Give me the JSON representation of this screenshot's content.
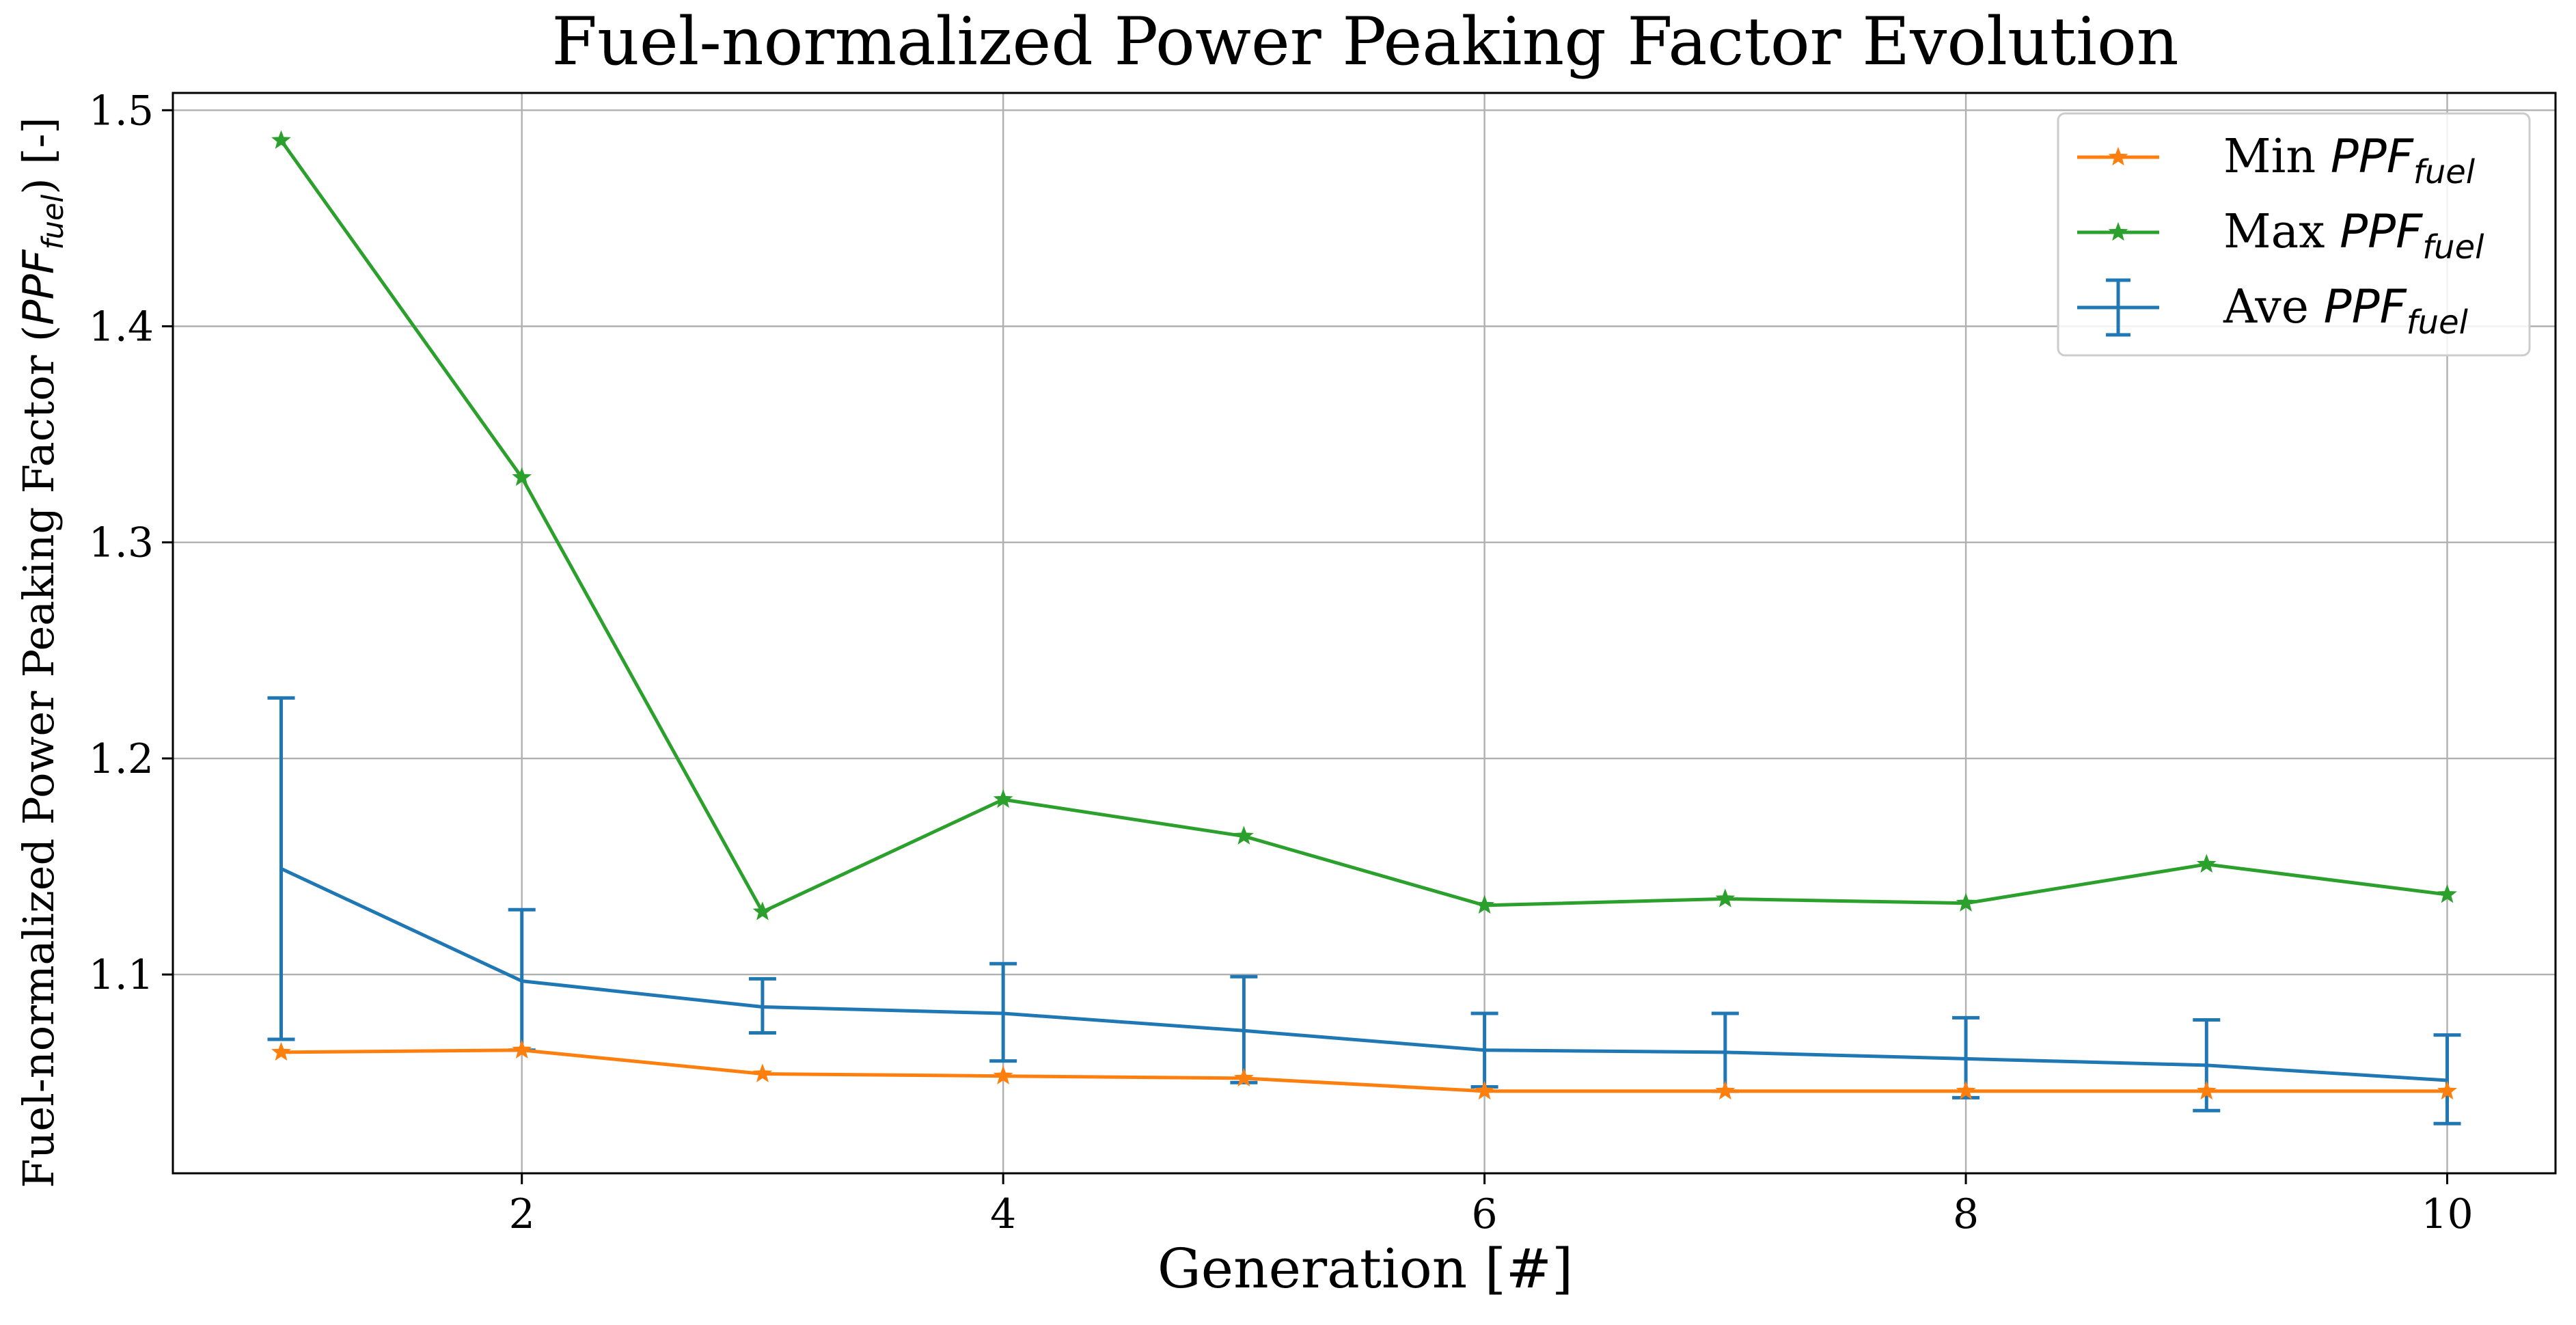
{
  "chart_data": {
    "type": "line",
    "title": "Fuel-normalized Power Peaking Factor Evolution",
    "xlabel": "Generation [#]",
    "ylabel": {
      "prefix": "Fuel-normalized Power Peaking Factor (",
      "math_main": "PPF",
      "math_sub": "fuel",
      "suffix": ") [-]"
    },
    "xlim": [
      0.55,
      10.45
    ],
    "ylim": [
      1.008,
      1.508
    ],
    "xticks": [
      2,
      4,
      6,
      8,
      10
    ],
    "xtick_labels": [
      "2",
      "4",
      "6",
      "8",
      "10"
    ],
    "yticks": [
      1.1,
      1.2,
      1.3,
      1.4,
      1.5
    ],
    "ytick_labels": [
      "1.1",
      "1.2",
      "1.3",
      "1.4",
      "1.5"
    ],
    "grid": true,
    "legend_position": "top-right",
    "x": [
      1,
      2,
      3,
      4,
      5,
      6,
      7,
      8,
      9,
      10
    ],
    "series": [
      {
        "key": "min",
        "name_prefix": "Min ",
        "name_main": "PPF",
        "name_sub": "fuel",
        "color": "#ff7f0e",
        "marker": "star",
        "values": [
          1.064,
          1.065,
          1.054,
          1.053,
          1.052,
          1.046,
          1.046,
          1.046,
          1.046,
          1.046
        ]
      },
      {
        "key": "max",
        "name_prefix": "Max ",
        "name_main": "PPF",
        "name_sub": "fuel",
        "color": "#2ca02c",
        "marker": "star",
        "values": [
          1.486,
          1.33,
          1.129,
          1.181,
          1.164,
          1.132,
          1.135,
          1.133,
          1.151,
          1.137
        ]
      },
      {
        "key": "ave",
        "name_prefix": "Ave ",
        "name_main": "PPF",
        "name_sub": "fuel",
        "color": "#1f77b4",
        "marker": "errorbar",
        "values": [
          1.149,
          1.097,
          1.085,
          1.082,
          1.074,
          1.065,
          1.064,
          1.061,
          1.058,
          1.051
        ],
        "error_low": [
          1.07,
          1.065,
          1.073,
          1.06,
          1.05,
          1.048,
          1.046,
          1.043,
          1.037,
          1.031
        ],
        "error_high": [
          1.228,
          1.13,
          1.098,
          1.105,
          1.099,
          1.082,
          1.082,
          1.08,
          1.079,
          1.072
        ]
      }
    ]
  }
}
